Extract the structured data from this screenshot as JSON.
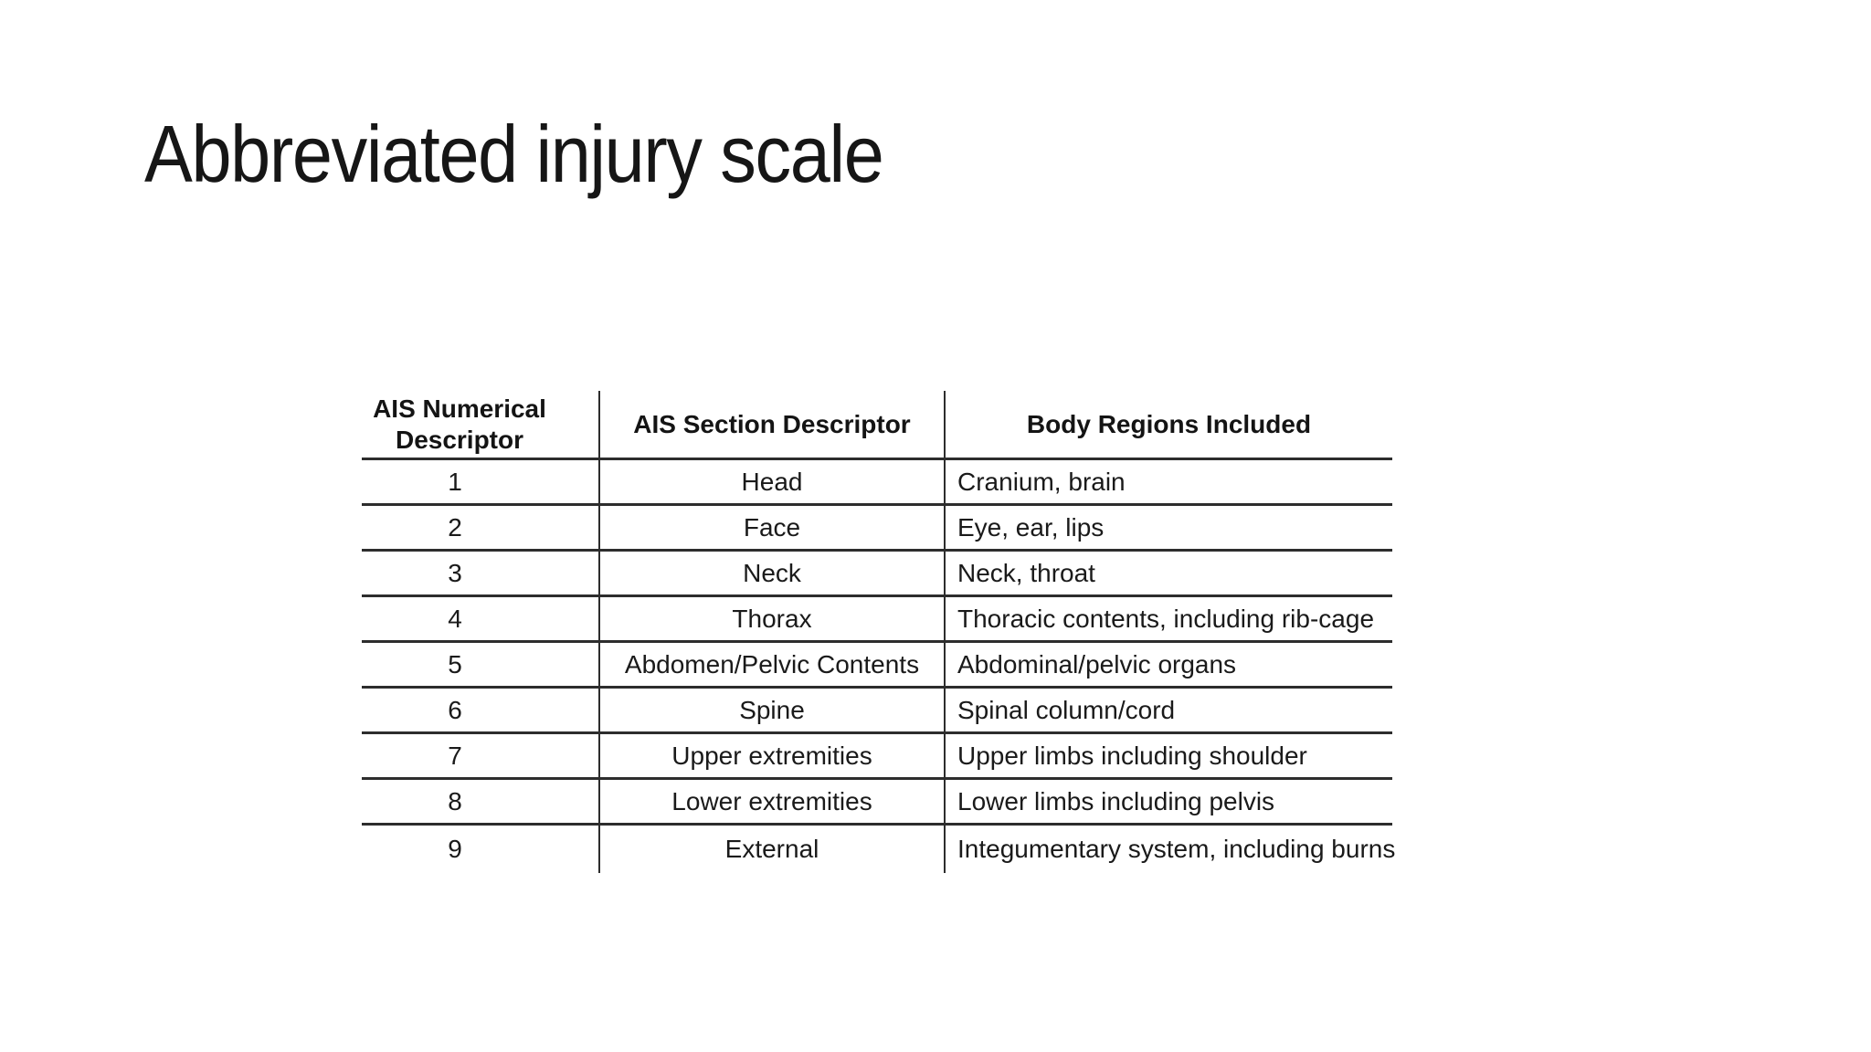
{
  "slide": {
    "title": "Abbreviated injury scale",
    "background_color": "#ffffff"
  },
  "table": {
    "columns": [
      "AIS Numerical Descriptor",
      "AIS Section Descriptor",
      "Body Regions Included"
    ],
    "rows": [
      {
        "ais_number": "1",
        "section": "Head",
        "body_regions": "Cranium, brain"
      },
      {
        "ais_number": "2",
        "section": "Face",
        "body_regions": "Eye, ear, lips"
      },
      {
        "ais_number": "3",
        "section": "Neck",
        "body_regions": "Neck, throat"
      },
      {
        "ais_number": "4",
        "section": "Thorax",
        "body_regions": "Thoracic contents, including rib-cage"
      },
      {
        "ais_number": "5",
        "section": "Abdomen/Pelvic Contents",
        "body_regions": "Abdominal/pelvic organs"
      },
      {
        "ais_number": "6",
        "section": "Spine",
        "body_regions": "Spinal column/cord"
      },
      {
        "ais_number": "7",
        "section": "Upper extremities",
        "body_regions": "Upper limbs including shoulder"
      },
      {
        "ais_number": "8",
        "section": "Lower extremities",
        "body_regions": "Lower limbs including pelvis"
      },
      {
        "ais_number": "9",
        "section": "External",
        "body_regions": "Integumentary system, including burns"
      }
    ],
    "colors": {
      "text": "#1a1a1a",
      "rule": "#2d2d2d",
      "background": "#ffffff"
    }
  }
}
